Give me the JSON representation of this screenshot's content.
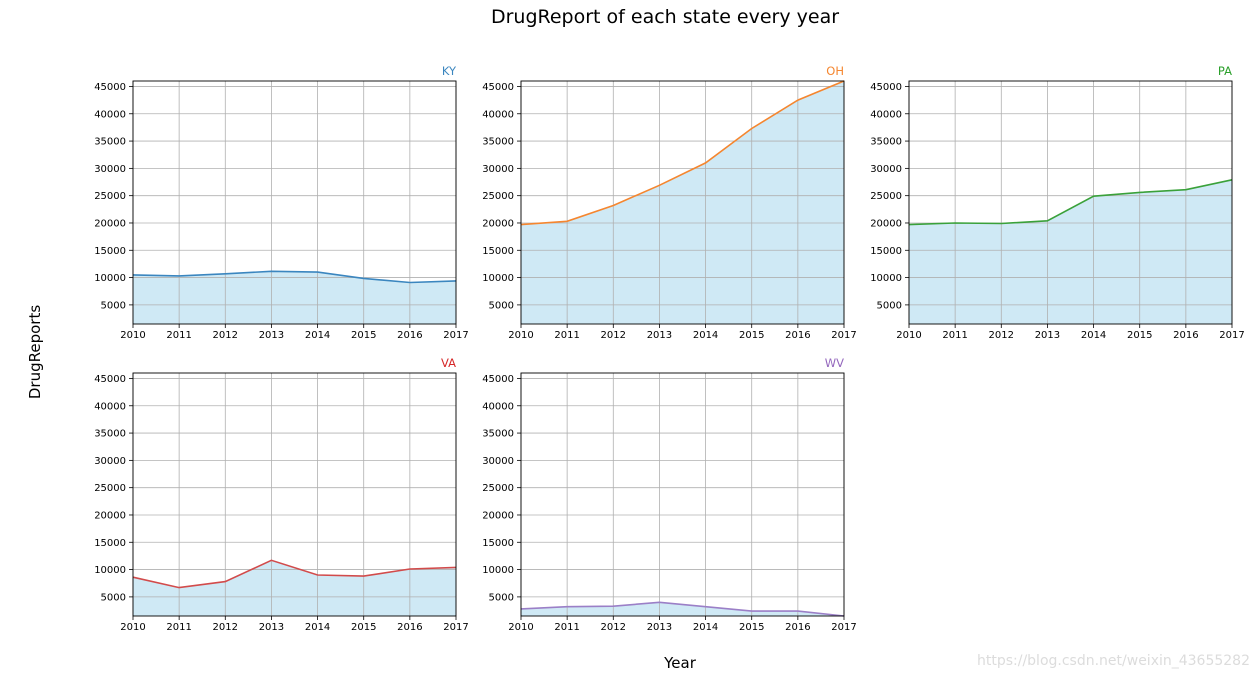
{
  "figure": {
    "title": "DrugReport of each state every year",
    "xlabel": "Year",
    "ylabel": "DrugReports",
    "watermark": "https://blog.csdn.net/weixin_43655282",
    "fill_color": "#cfe9f5"
  },
  "chart_data": [
    {
      "type": "area",
      "title": "KY",
      "title_color": "#3b86bf",
      "x": [
        2010,
        2011,
        2012,
        2013,
        2014,
        2015,
        2016,
        2017
      ],
      "series": [
        {
          "name": "KY",
          "color": "#3b86bf",
          "values": [
            10500,
            10300,
            10700,
            11150,
            11000,
            9850,
            9100,
            9400
          ]
        }
      ],
      "xlim": [
        2010,
        2017
      ],
      "ylim": [
        1500,
        46000
      ],
      "yticks": [
        5000,
        10000,
        15000,
        20000,
        25000,
        30000,
        35000,
        40000,
        45000
      ],
      "grid": true
    },
    {
      "type": "area",
      "title": "OH",
      "title_color": "#f5862f",
      "x": [
        2010,
        2011,
        2012,
        2013,
        2014,
        2015,
        2016,
        2017
      ],
      "series": [
        {
          "name": "OH",
          "color": "#f5862f",
          "values": [
            19700,
            20300,
            23200,
            26900,
            31000,
            37300,
            42500,
            46000
          ]
        }
      ],
      "xlim": [
        2010,
        2017
      ],
      "ylim": [
        1500,
        46000
      ],
      "yticks": [
        5000,
        10000,
        15000,
        20000,
        25000,
        30000,
        35000,
        40000,
        45000
      ],
      "grid": true
    },
    {
      "type": "area",
      "title": "PA",
      "title_color": "#2ca02c",
      "x": [
        2010,
        2011,
        2012,
        2013,
        2014,
        2015,
        2016,
        2017
      ],
      "series": [
        {
          "name": "PA",
          "color": "#3aa13a",
          "values": [
            19700,
            20000,
            19900,
            20400,
            24900,
            25600,
            26100,
            27900
          ]
        }
      ],
      "xlim": [
        2010,
        2017
      ],
      "ylim": [
        1500,
        46000
      ],
      "yticks": [
        5000,
        10000,
        15000,
        20000,
        25000,
        30000,
        35000,
        40000,
        45000
      ],
      "grid": true
    },
    {
      "type": "area",
      "title": "VA",
      "title_color": "#d62728",
      "x": [
        2010,
        2011,
        2012,
        2013,
        2014,
        2015,
        2016,
        2017
      ],
      "series": [
        {
          "name": "VA",
          "color": "#d24b4b",
          "values": [
            8600,
            6700,
            7800,
            11700,
            9000,
            8800,
            10100,
            10400
          ]
        }
      ],
      "xlim": [
        2010,
        2017
      ],
      "ylim": [
        1500,
        46000
      ],
      "yticks": [
        5000,
        10000,
        15000,
        20000,
        25000,
        30000,
        35000,
        40000,
        45000
      ],
      "grid": true
    },
    {
      "type": "area",
      "title": "WV",
      "title_color": "#9467bd",
      "x": [
        2010,
        2011,
        2012,
        2013,
        2014,
        2015,
        2016,
        2017
      ],
      "series": [
        {
          "name": "WV",
          "color": "#9b7fc7",
          "values": [
            2800,
            3200,
            3300,
            4000,
            3200,
            2400,
            2400,
            1500
          ]
        }
      ],
      "xlim": [
        2010,
        2017
      ],
      "ylim": [
        1500,
        46000
      ],
      "yticks": [
        5000,
        10000,
        15000,
        20000,
        25000,
        30000,
        35000,
        40000,
        45000
      ],
      "grid": true
    }
  ]
}
